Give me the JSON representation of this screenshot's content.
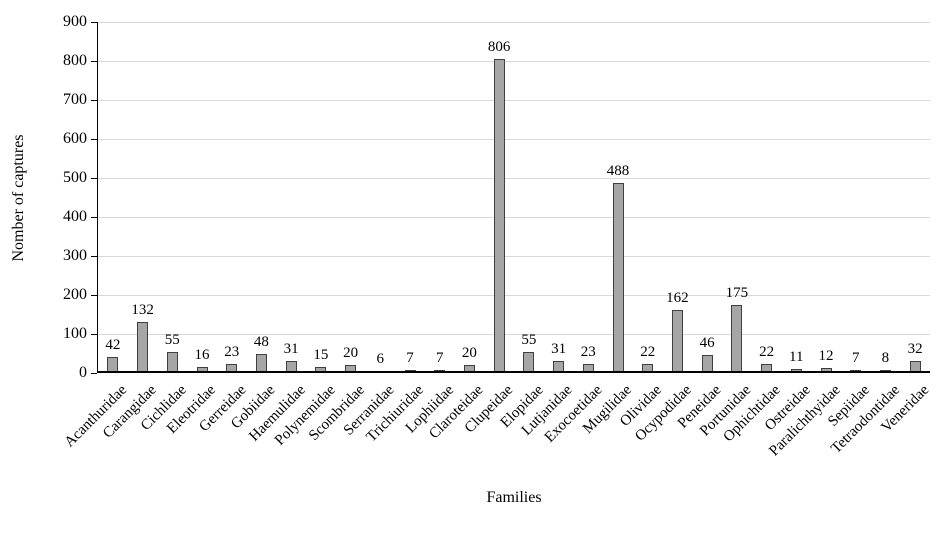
{
  "chart_data": {
    "type": "bar",
    "title": "",
    "xlabel": "Families",
    "ylabel": "Nomber of captures",
    "ylim": [
      0,
      900
    ],
    "yticks": [
      0,
      100,
      200,
      300,
      400,
      500,
      600,
      700,
      800,
      900
    ],
    "grid": true,
    "legend": "none",
    "data_labels": true,
    "bar_fill_color": "#A6A6A6",
    "bar_border_color": "#404040",
    "gridline_color": "#D9D9D9",
    "axis_color": "#000000",
    "categories": [
      "Acanthuridae",
      "Carangidae",
      "Cichlidae",
      "Eleotridae",
      "Gerreidae",
      "Gobiidae",
      "Haemulidae",
      "Polynemidae",
      "Scombridae",
      "Serranidae",
      "Trichiuridae",
      "Lophiidae",
      "Claroteidae",
      "Clupeidae",
      "Elopidae",
      "Lutjanidae",
      "Exocoetidae",
      "Mugilidae",
      "Olividae",
      "Ocypodidae",
      "Peneidae",
      "Portunidae",
      "Ophichtidae",
      "Ostreidae",
      "Paralichthyidae",
      "Sepiidae",
      "Tetraodontidae",
      "Veneridae"
    ],
    "values": [
      42,
      132,
      55,
      16,
      23,
      48,
      31,
      15,
      20,
      6,
      7,
      7,
      20,
      806,
      55,
      31,
      23,
      488,
      22,
      162,
      46,
      175,
      22,
      11,
      12,
      7,
      8,
      32
    ]
  }
}
